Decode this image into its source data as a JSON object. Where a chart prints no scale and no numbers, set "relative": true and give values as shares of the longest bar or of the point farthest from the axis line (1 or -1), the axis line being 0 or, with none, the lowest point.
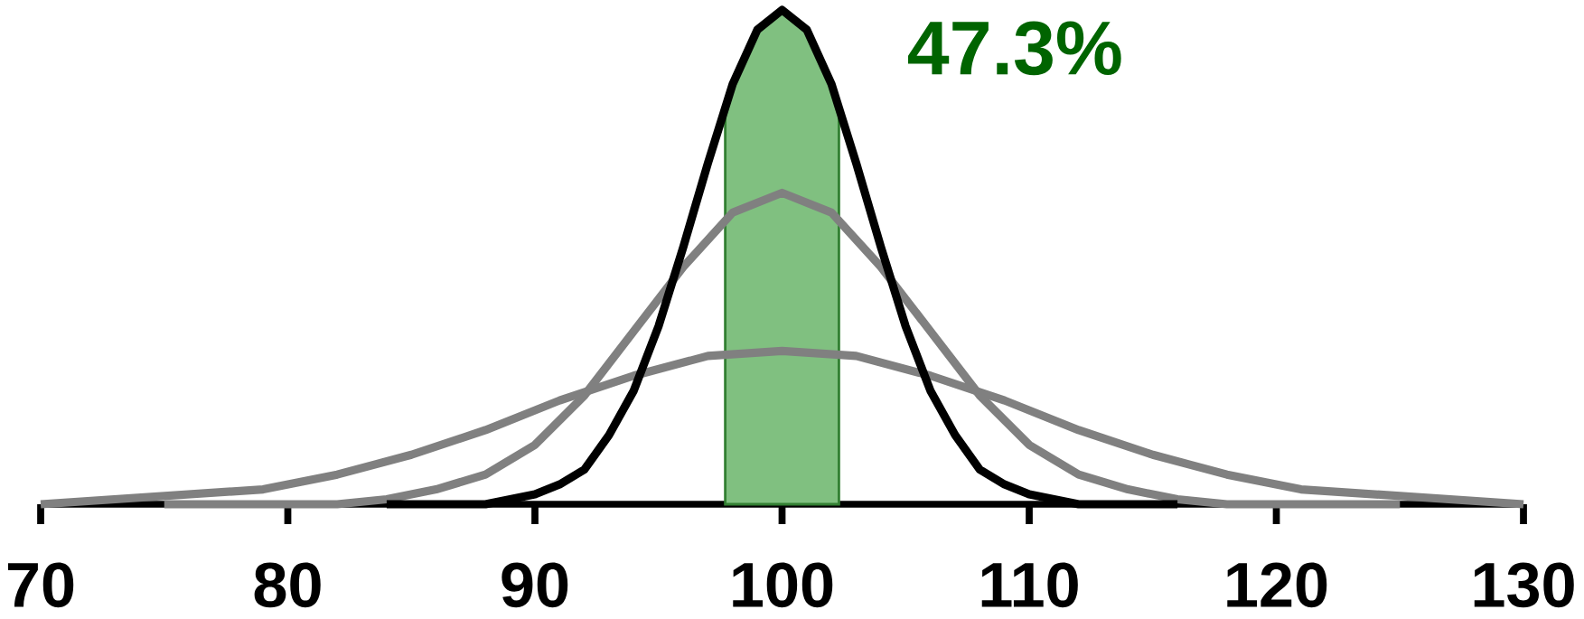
{
  "chart_data": {
    "type": "line",
    "relative": true,
    "xlim": [
      70,
      130
    ],
    "xticks": [
      70,
      80,
      90,
      100,
      110,
      120,
      130
    ],
    "grid": false,
    "marker": "none",
    "line_style": "solid",
    "series": [
      {
        "color": "#808080",
        "x": [
          70,
          73,
          76,
          79,
          82,
          85,
          88,
          91,
          94,
          97,
          100,
          103,
          106,
          109,
          112,
          115,
          118,
          121,
          124,
          127,
          130
        ],
        "values": [
          0,
          0.01,
          0.02,
          0.03,
          0.06,
          0.1,
          0.15,
          0.21,
          0.26,
          0.3,
          0.31,
          0.3,
          0.26,
          0.21,
          0.15,
          0.1,
          0.06,
          0.03,
          0.02,
          0.01,
          0
        ]
      },
      {
        "color": "#808080",
        "x": [
          75,
          76,
          78,
          80,
          82,
          84,
          86,
          88,
          90,
          92,
          94,
          96,
          98,
          100,
          102,
          104,
          106,
          108,
          110,
          112,
          114,
          116,
          118,
          120,
          122,
          124,
          125
        ],
        "values": [
          0,
          0,
          0,
          0,
          0,
          0.01,
          0.03,
          0.06,
          0.12,
          0.22,
          0.35,
          0.48,
          0.59,
          0.63,
          0.59,
          0.48,
          0.35,
          0.22,
          0.12,
          0.06,
          0.03,
          0.01,
          0,
          0,
          0,
          0,
          0
        ]
      },
      {
        "color": "#000000",
        "x": [
          84,
          85,
          86,
          87,
          88,
          89,
          90,
          91,
          92,
          93,
          94,
          95,
          96,
          97,
          98,
          99,
          100,
          101,
          102,
          103,
          104,
          105,
          106,
          107,
          108,
          109,
          110,
          111,
          112,
          113,
          114,
          115,
          116
        ],
        "values": [
          0,
          0,
          0,
          0,
          0,
          0.01,
          0.02,
          0.04,
          0.07,
          0.14,
          0.23,
          0.36,
          0.52,
          0.69,
          0.85,
          0.96,
          1,
          0.96,
          0.85,
          0.69,
          0.52,
          0.36,
          0.23,
          0.14,
          0.07,
          0.04,
          0.02,
          0.01,
          0,
          0,
          0,
          0,
          0
        ]
      }
    ],
    "bands": [
      {
        "axis": "x",
        "from": 97.7,
        "to": 102.3,
        "label": "47.3%",
        "color": "#80c080"
      }
    ]
  }
}
